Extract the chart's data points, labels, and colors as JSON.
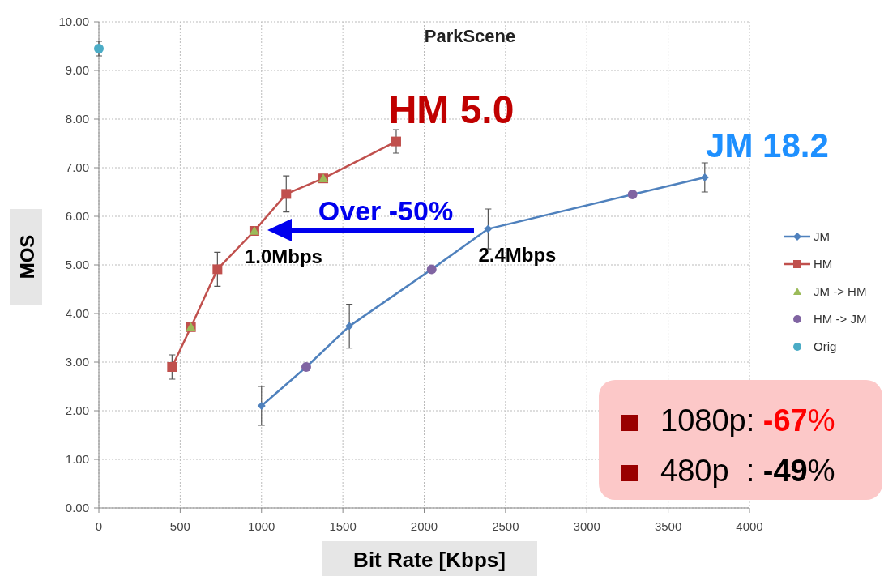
{
  "chart_data": {
    "type": "line",
    "title": "ParkScene",
    "xlabel": "Bit Rate [Kbps]",
    "ylabel": "MOS",
    "xlim": [
      0,
      4000
    ],
    "xticks": [
      0,
      500,
      1000,
      1500,
      2000,
      2500,
      3000,
      3500,
      4000
    ],
    "ylim": [
      0,
      10
    ],
    "yticks": [
      {
        "value": 0,
        "label": "0.00"
      },
      {
        "value": 1,
        "label": "1.00"
      },
      {
        "value": 2,
        "label": "2.00"
      },
      {
        "value": 3,
        "label": "3.00"
      },
      {
        "value": 4,
        "label": "4.00"
      },
      {
        "value": 5,
        "label": "5.00"
      },
      {
        "value": 6,
        "label": "6.00"
      },
      {
        "value": 7,
        "label": "7.00"
      },
      {
        "value": 8,
        "label": "8.00"
      },
      {
        "value": 9,
        "label": "9.00"
      },
      {
        "value": 10,
        "label": "10.00"
      }
    ],
    "grid": true,
    "legend": "right",
    "line_style": "solid",
    "series": [
      {
        "name": "JM",
        "marker": "diamond",
        "color": "#4f81bd",
        "x": [
          1000,
          1275,
          1540,
          2046,
          2393,
          3281,
          3725
        ],
        "values": [
          2.1,
          2.9,
          3.74,
          4.91,
          5.74,
          6.45,
          6.8
        ],
        "errors": [
          0.4,
          null,
          0.45,
          null,
          0.41,
          null,
          0.3
        ]
      },
      {
        "name": "HM",
        "marker": "square",
        "color": "#c0504d",
        "x": [
          450,
          566,
          729,
          956,
          1152,
          1380,
          1828
        ],
        "values": [
          2.9,
          3.72,
          4.91,
          5.7,
          6.46,
          6.78,
          7.54
        ],
        "errors": [
          0.25,
          null,
          0.35,
          null,
          0.37,
          null,
          0.24
        ]
      },
      {
        "name": "JM -> HM",
        "type": "scatter",
        "marker": "triangle",
        "color": "#9bbb59",
        "x": [
          566,
          956,
          1380
        ],
        "values": [
          3.72,
          5.7,
          6.78
        ]
      },
      {
        "name": "HM -> JM",
        "type": "scatter",
        "marker": "circle",
        "color": "#8064a2",
        "x": [
          1275,
          2046,
          3281
        ],
        "values": [
          2.9,
          4.91,
          6.45
        ]
      },
      {
        "name": "Orig",
        "type": "scatter",
        "marker": "circle",
        "color": "#4bacc6",
        "x": [
          0
        ],
        "values": [
          9.45
        ],
        "errors": [
          0.15
        ]
      }
    ],
    "annotations": [
      "HM 5.0",
      "JM 18.2",
      "Over -50%",
      {
        "text": "1.0Mbps",
        "x": 956,
        "y": 5.7
      },
      {
        "text": "2.4Mbps",
        "x": 2393,
        "y": 5.74
      },
      "1080p: -67%",
      "480p  : -49%"
    ]
  }
}
